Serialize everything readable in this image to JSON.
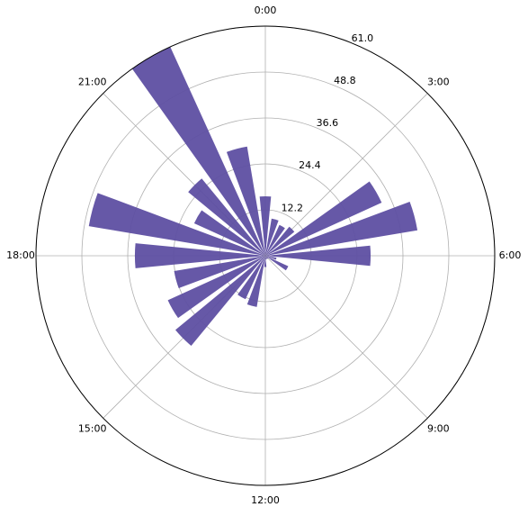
{
  "chart_data": {
    "type": "polar_bar",
    "x": [
      0,
      1,
      2,
      3,
      4,
      5,
      6,
      7,
      8,
      9,
      10,
      11,
      12,
      13,
      14,
      15,
      16,
      17,
      18,
      19,
      20,
      21,
      22,
      23
    ],
    "values": [
      15.8,
      10,
      9,
      10,
      34,
      41,
      28,
      3,
      6.7,
      1,
      1,
      1,
      3,
      13.8,
      12.7,
      31,
      28.5,
      24.6,
      34.7,
      47.6,
      20.8,
      26.6,
      61,
      29.4
    ],
    "color": "#5e4fa2",
    "xlim": [
      0,
      24
    ],
    "xticks": [
      {
        "value": 0,
        "label": "0:00"
      },
      {
        "value": 3,
        "label": "3:00"
      },
      {
        "value": 6,
        "label": "6:00"
      },
      {
        "value": 9,
        "label": "9:00"
      },
      {
        "value": 12,
        "label": "12:00"
      },
      {
        "value": 15,
        "label": "15:00"
      },
      {
        "value": 18,
        "label": "18:00"
      },
      {
        "value": 21,
        "label": "21:00"
      }
    ],
    "ylim": [
      0,
      61
    ],
    "yticks": [
      12.2,
      24.4,
      36.6,
      48.8,
      {
        "value": 61,
        "label": "61.0"
      }
    ],
    "grid": true
  }
}
